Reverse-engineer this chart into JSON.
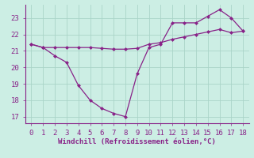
{
  "xlabel": "Windchill (Refroidissement éolien,°C)",
  "line1_x": [
    0,
    1,
    2,
    3,
    4,
    5,
    6,
    7,
    8,
    9,
    10,
    11,
    12,
    13,
    14,
    15,
    16,
    17,
    18
  ],
  "line1_y": [
    21.4,
    21.2,
    20.7,
    20.3,
    18.9,
    18.0,
    17.5,
    17.2,
    17.0,
    19.6,
    21.2,
    21.4,
    22.7,
    22.7,
    22.7,
    23.1,
    23.5,
    23.0,
    22.2
  ],
  "line2_x": [
    0,
    1,
    2,
    3,
    4,
    5,
    6,
    7,
    8,
    9,
    10,
    11,
    12,
    13,
    14,
    15,
    16,
    17,
    18
  ],
  "line2_y": [
    21.4,
    21.2,
    21.2,
    21.2,
    21.2,
    21.2,
    21.15,
    21.1,
    21.1,
    21.15,
    21.4,
    21.5,
    21.7,
    21.85,
    22.0,
    22.15,
    22.3,
    22.1,
    22.2
  ],
  "line_color": "#882288",
  "bg_color": "#cceee4",
  "grid_color": "#aad4c8",
  "text_color": "#882288",
  "spine_color": "#882288",
  "ylim": [
    16.6,
    23.8
  ],
  "xlim": [
    -0.5,
    18.5
  ],
  "yticks": [
    17,
    18,
    19,
    20,
    21,
    22,
    23
  ],
  "xticks": [
    0,
    1,
    2,
    3,
    4,
    5,
    6,
    7,
    8,
    9,
    10,
    11,
    12,
    13,
    14,
    15,
    16,
    17,
    18
  ],
  "marker_size": 2.5,
  "linewidth": 0.9,
  "tick_fontsize": 6.5,
  "xlabel_fontsize": 6.5
}
